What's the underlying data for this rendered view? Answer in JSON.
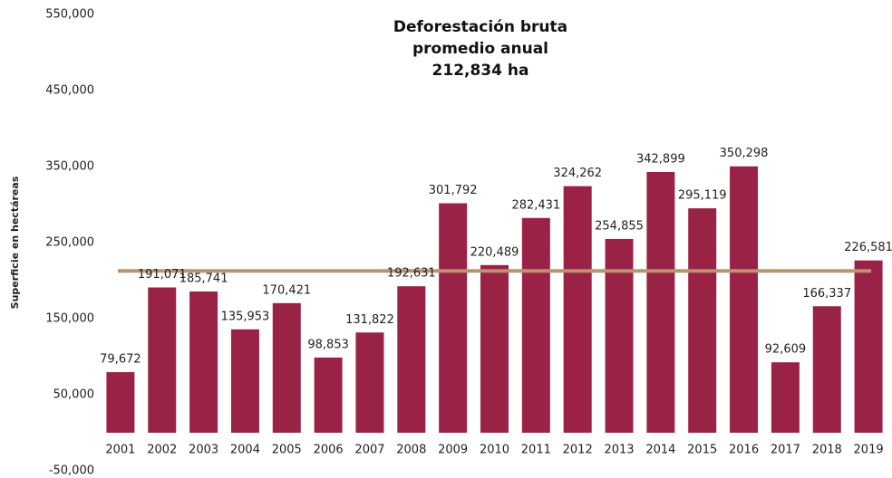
{
  "chart_data": {
    "type": "bar",
    "title": [
      "Deforestación bruta",
      "promedio anual",
      "212,834 ha"
    ],
    "y_label": "Superficie en hectáreas",
    "categories": [
      "2001",
      "2002",
      "2003",
      "2004",
      "2005",
      "2006",
      "2007",
      "2008",
      "2009",
      "2010",
      "2011",
      "2012",
      "2013",
      "2014",
      "2015",
      "2016",
      "2017",
      "2018",
      "2019"
    ],
    "values": [
      79672,
      191071,
      185741,
      135953,
      170421,
      98853,
      131822,
      192631,
      301792,
      220489,
      282431,
      324262,
      254855,
      342899,
      295119,
      350298,
      92609,
      166337,
      226581
    ],
    "value_labels": [
      "79,672",
      "191,071",
      "185,741",
      "135,953",
      "170,421",
      "98,853",
      "131,822",
      "192,631",
      "301,792",
      "220,489",
      "282,431",
      "324,262",
      "254,855",
      "342,899",
      "295,119",
      "350,298",
      "92,609",
      "166,337",
      "226,581"
    ],
    "color": "#9b2247",
    "reference_line": {
      "value": 212834,
      "color": "#b8956a"
    },
    "ylim": [
      -50000,
      550000
    ],
    "yticks": [
      {
        "value": -50000,
        "label": "-50,000"
      },
      {
        "value": 50000,
        "label": "50,000"
      },
      {
        "value": 150000,
        "label": "150,000"
      },
      {
        "value": 250000,
        "label": "250,000"
      },
      {
        "value": 350000,
        "label": "350,000"
      },
      {
        "value": 450000,
        "label": "450,000"
      },
      {
        "value": 550000,
        "label": "550,000"
      }
    ],
    "grid": false
  }
}
